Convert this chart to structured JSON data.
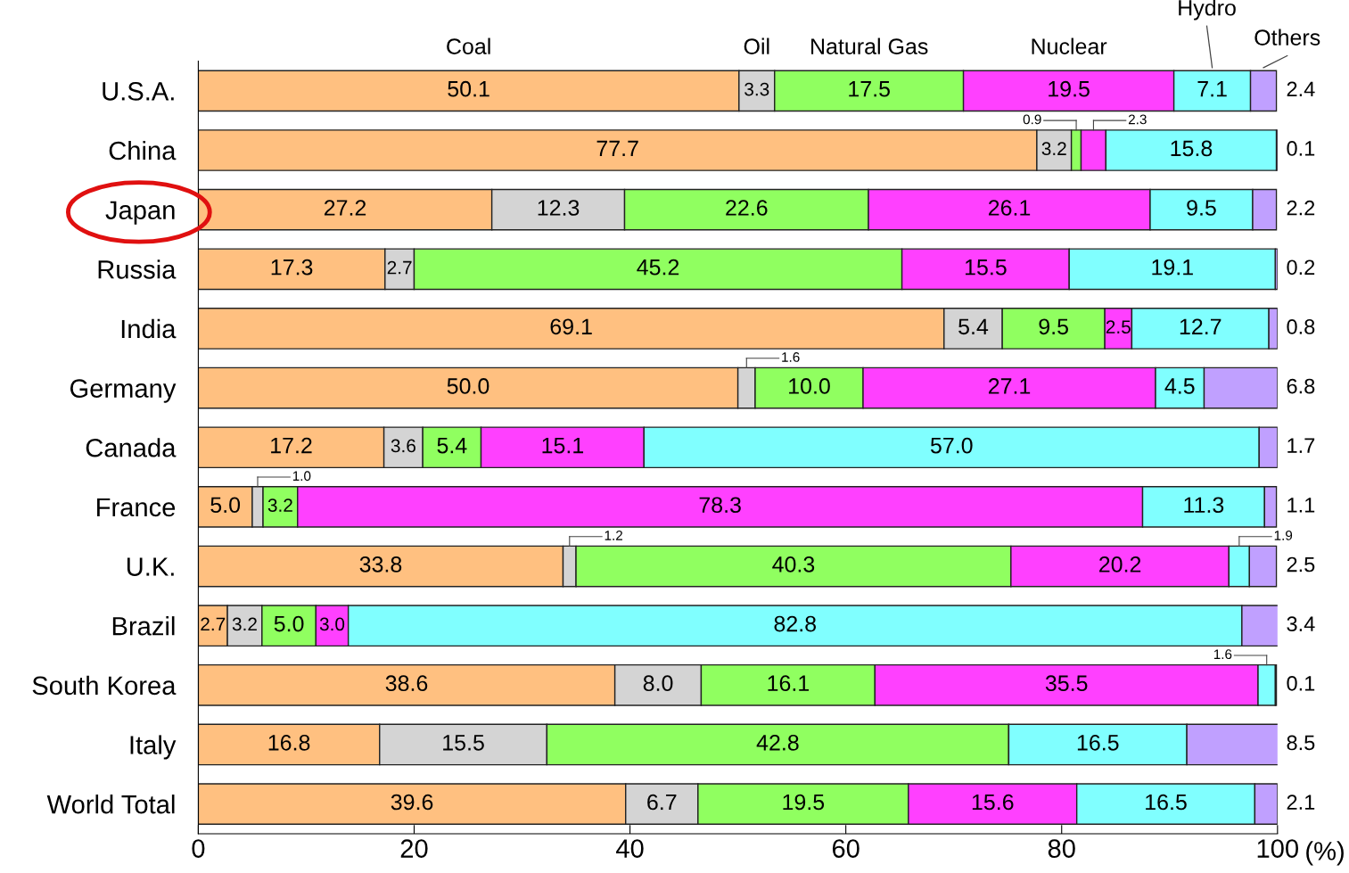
{
  "chart_data": {
    "type": "bar",
    "orientation": "horizontal",
    "stacked": true,
    "legend": "top",
    "categories": [
      "U.S.A.",
      "China",
      "Japan",
      "Russia",
      "India",
      "Germany",
      "Canada",
      "France",
      "U.K.",
      "Brazil",
      "South Korea",
      "Italy",
      "World Total"
    ],
    "series": [
      {
        "name": "Coal",
        "color": "#ffc080",
        "values": [
          50.1,
          77.7,
          27.2,
          17.3,
          69.1,
          50.0,
          17.2,
          5.0,
          33.8,
          2.7,
          38.6,
          16.8,
          39.6
        ],
        "value_labels": [
          "50.1",
          "77.7",
          "27.2",
          "17.3",
          "69.1",
          "50.0",
          "17.2",
          "5.0",
          "33.8",
          "2.7",
          "38.6",
          "16.8",
          "39.6"
        ]
      },
      {
        "name": "Oil",
        "color": "#d4d4d4",
        "values": [
          3.3,
          3.2,
          12.3,
          2.7,
          5.4,
          1.6,
          3.6,
          1.0,
          1.2,
          3.2,
          8.0,
          15.5,
          6.7
        ],
        "value_labels": [
          "3.3",
          "3.2",
          "12.3",
          "2.7",
          "5.4",
          "1.6",
          "3.6",
          "1.0",
          "1.2",
          "3.2",
          "8.0",
          "15.5",
          "6.7"
        ]
      },
      {
        "name": "Natural Gas",
        "color": "#90ff60",
        "values": [
          17.5,
          0.9,
          22.6,
          45.2,
          9.5,
          10.0,
          5.4,
          3.2,
          40.3,
          5.0,
          16.1,
          42.8,
          19.5
        ],
        "value_labels": [
          "17.5",
          "0.9",
          "22.6",
          "45.2",
          "9.5",
          "10.0",
          "5.4",
          "3.2",
          "40.3",
          "5.0",
          "16.1",
          "42.8",
          "19.5"
        ]
      },
      {
        "name": "Nuclear",
        "color": "#ff40ff",
        "values": [
          19.5,
          2.3,
          26.1,
          15.5,
          2.5,
          27.1,
          15.1,
          78.3,
          20.2,
          3.0,
          35.5,
          0,
          15.6
        ],
        "value_labels": [
          "19.5",
          "2.3",
          "26.1",
          "15.5",
          "2.5",
          "27.1",
          "15.1",
          "78.3",
          "20.2",
          "3.0",
          "35.5",
          null,
          "15.6"
        ]
      },
      {
        "name": "Hydro",
        "color": "#80ffff",
        "values": [
          7.1,
          15.8,
          9.5,
          19.1,
          12.7,
          4.5,
          57.0,
          11.3,
          1.9,
          82.8,
          1.6,
          16.5,
          16.5
        ],
        "value_labels": [
          "7.1",
          "15.8",
          "9.5",
          "19.1",
          "12.7",
          "4.5",
          "57.0",
          "11.3",
          "1.9",
          "82.8",
          "1.6",
          "16.5",
          "16.5"
        ]
      },
      {
        "name": "Others",
        "color": "#c0a0ff",
        "values": [
          2.4,
          0.1,
          2.2,
          0.2,
          0.8,
          6.8,
          1.7,
          1.1,
          2.5,
          3.4,
          0.1,
          8.5,
          2.1
        ],
        "value_labels": [
          "2.4",
          "0.1",
          "2.2",
          "0.2",
          "0.8",
          "6.8",
          "1.7",
          "1.1",
          "2.5",
          "3.4",
          "0.1",
          "8.5",
          "2.1"
        ]
      }
    ],
    "xlabel": "(%)",
    "xlim": [
      0,
      100
    ],
    "xticks": [
      0,
      20,
      40,
      60,
      80,
      100
    ],
    "grid": false
  }
}
